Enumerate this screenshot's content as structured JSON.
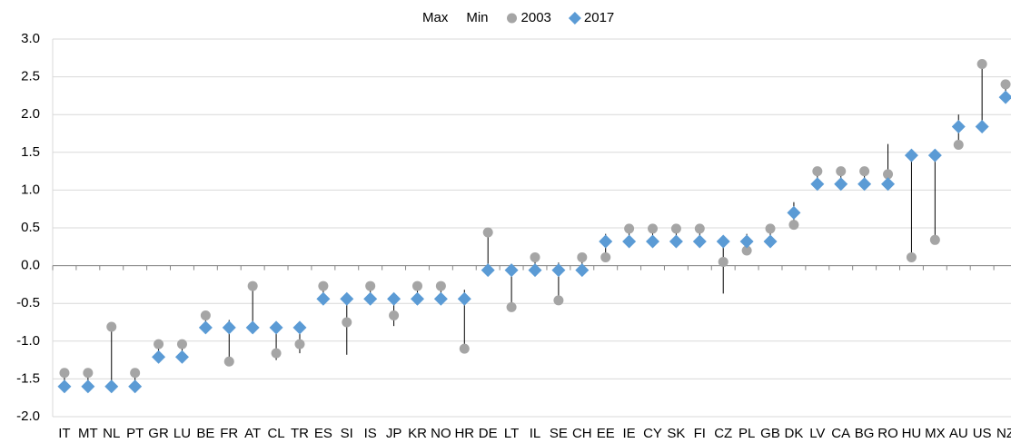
{
  "chart_data": {
    "type": "high-low",
    "categories": [
      "IT",
      "MT",
      "NL",
      "PT",
      "GR",
      "LU",
      "BE",
      "FR",
      "AT",
      "CL",
      "TR",
      "ES",
      "SI",
      "IS",
      "JP",
      "KR",
      "NO",
      "HR",
      "DE",
      "LT",
      "IL",
      "SE",
      "CH",
      "EE",
      "IE",
      "CY",
      "SK",
      "FI",
      "CZ",
      "PL",
      "GB",
      "DK",
      "LV",
      "CA",
      "BG",
      "RO",
      "HU",
      "MX",
      "AU",
      "US",
      "NZ"
    ],
    "series": [
      {
        "name": "Max",
        "color": "#000000",
        "marker": "none",
        "values": [
          -1.42,
          -1.42,
          -0.81,
          -1.42,
          -1.04,
          -1.04,
          -0.66,
          -0.72,
          -0.27,
          -0.82,
          -0.82,
          -0.27,
          -0.44,
          -0.27,
          -0.44,
          -0.27,
          -0.27,
          -0.32,
          0.44,
          -0.06,
          0.11,
          0.04,
          0.11,
          0.42,
          0.49,
          0.49,
          0.49,
          0.49,
          0.32,
          0.42,
          0.49,
          0.84,
          1.25,
          1.25,
          1.25,
          1.61,
          1.46,
          1.46,
          2.0,
          2.67,
          2.4
        ]
      },
      {
        "name": "Min",
        "color": "#000000",
        "marker": "none",
        "values": [
          -1.6,
          -1.6,
          -1.6,
          -1.6,
          -1.21,
          -1.21,
          -0.82,
          -1.27,
          -0.82,
          -1.25,
          -1.16,
          -0.44,
          -1.18,
          -0.44,
          -0.8,
          -0.44,
          -0.44,
          -1.1,
          -0.06,
          -0.55,
          -0.06,
          -0.46,
          -0.06,
          0.11,
          0.32,
          0.32,
          0.32,
          0.32,
          -0.37,
          0.2,
          0.32,
          0.54,
          1.08,
          1.08,
          1.08,
          1.08,
          0.11,
          0.34,
          1.6,
          1.84,
          2.23
        ]
      },
      {
        "name": "2003",
        "color": "#a5a5a5",
        "marker": "circle",
        "values": [
          -1.42,
          -1.42,
          -0.81,
          -1.42,
          -1.04,
          -1.04,
          -0.66,
          -1.27,
          -0.27,
          -1.16,
          -1.04,
          -0.27,
          -0.75,
          -0.27,
          -0.66,
          -0.27,
          -0.27,
          -1.1,
          0.44,
          -0.55,
          0.11,
          -0.46,
          0.11,
          0.11,
          0.49,
          0.49,
          0.49,
          0.49,
          0.05,
          0.2,
          0.49,
          0.54,
          1.25,
          1.25,
          1.25,
          1.21,
          0.11,
          0.34,
          1.6,
          2.67,
          2.4
        ]
      },
      {
        "name": "2017",
        "color": "#5b9bd5",
        "marker": "diamond",
        "values": [
          -1.6,
          -1.6,
          -1.6,
          -1.6,
          -1.21,
          -1.21,
          -0.82,
          -0.82,
          -0.82,
          -0.82,
          -0.82,
          -0.44,
          -0.44,
          -0.44,
          -0.44,
          -0.44,
          -0.44,
          -0.44,
          -0.06,
          -0.06,
          -0.06,
          -0.06,
          -0.06,
          0.32,
          0.32,
          0.32,
          0.32,
          0.32,
          0.32,
          0.32,
          0.32,
          0.7,
          1.08,
          1.08,
          1.08,
          1.08,
          1.46,
          1.46,
          1.84,
          1.84,
          2.23
        ]
      }
    ],
    "ylim": [
      -2.0,
      3.0
    ],
    "yticks": [
      {
        "value": -2.0,
        "label": "-2.0"
      },
      -1.5,
      {
        "value": -1.0,
        "label": "-1.0"
      },
      -0.5,
      {
        "value": 0.0,
        "label": "0.0"
      },
      0.5,
      {
        "value": 1.0,
        "label": "1.0"
      },
      1.5,
      {
        "value": 2.0,
        "label": "2.0"
      },
      2.5,
      {
        "value": 3.0,
        "label": "3.0"
      }
    ],
    "grid": true,
    "legend": "top"
  }
}
